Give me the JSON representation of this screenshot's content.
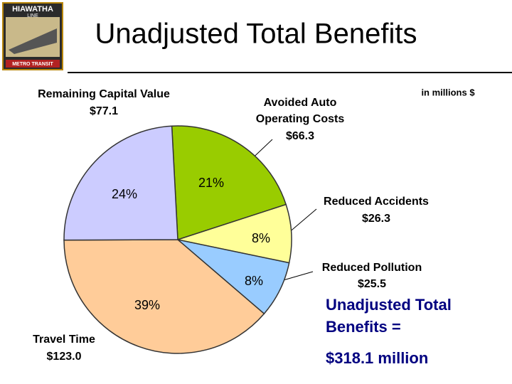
{
  "logo": {
    "line1": "HIAWATHA",
    "line2": "LINE",
    "line3": "METRO TRANSIT"
  },
  "chart_data": {
    "type": "pie",
    "title": "Unadjusted Total Benefits",
    "subtitle": "in millions $",
    "categories": [
      "Avoided Auto\nOperating Costs",
      "Reduced Accidents",
      "Reduced Pollution",
      "Travel Time",
      "Remaining Capital Value"
    ],
    "values": [
      66.3,
      26.3,
      25.5,
      123.0,
      77.1
    ],
    "value_labels": [
      "$66.3",
      "$26.3",
      "$25.5",
      "$123.0",
      "$77.1"
    ],
    "percent_labels": [
      "21%",
      "8%",
      "8%",
      "39%",
      "24%"
    ],
    "colors": [
      "#99cc00",
      "#ffff99",
      "#99ccff",
      "#ffcc99",
      "#ccccff"
    ],
    "annotation": {
      "line1": "Unadjusted Total",
      "line2": "Benefits =",
      "line3": "$318.1 million"
    }
  }
}
